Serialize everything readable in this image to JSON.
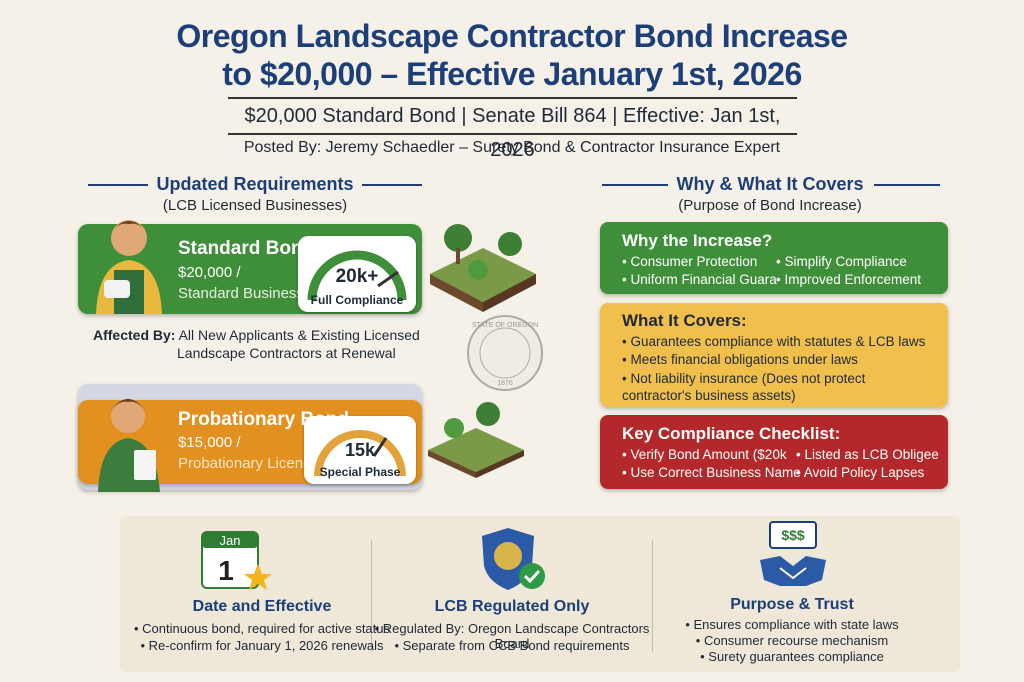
{
  "header": {
    "title_line1": "Oregon Landscape Contractor Bond Increase",
    "title_line2": "to $20,000 – Effective January 1st, 2026",
    "subtitle": "$20,000 Standard Bond | Senate Bill 864 | Effective: Jan 1st, 2026",
    "posted_by": "Posted By: Jeremy Schaedler – Surety Bond & Contractor Insurance Expert"
  },
  "left": {
    "heading": "Updated Requirements",
    "subheading": "(LCB Licensed Businesses)",
    "standard": {
      "title": "Standard Bond",
      "amount": "$20,000 /",
      "desc": "Standard Business",
      "gauge_value": "20k+",
      "gauge_label": "Full Compliance"
    },
    "affected": {
      "label": "Affected By:",
      "line1": "All New Applicants & Existing Licensed",
      "line2": "Landscape Contractors at Renewal"
    },
    "probationary": {
      "title": "Probationary Bond",
      "amount": "$15,000 /",
      "desc": "Probationary License",
      "gauge_value": "15k",
      "gauge_label": "Special Phase"
    },
    "seal": {
      "top": "STATE OF OREGON",
      "year": "1876"
    }
  },
  "right": {
    "heading": "Why & What It Covers",
    "subheading": "(Purpose of Bond Increase)",
    "why": {
      "title": "Why the Increase?",
      "items": [
        "• Consumer Protection",
        "• Simplify Compliance",
        "• Uniform Financial Guara",
        "• Improved Enforcement"
      ]
    },
    "covers": {
      "title": "What It Covers:",
      "items": [
        "• Guarantees compliance with statutes & LCB laws",
        "• Meets financial obligations under laws",
        "• Not liability insurance (Does not protect contractor's business assets)"
      ]
    },
    "checklist": {
      "title": "Key Compliance Checklist:",
      "items": [
        "• Verify Bond Amount ($20k",
        "• Listed as LCB Obligee",
        "• Use Correct Business Name",
        "• Avoid Policy Lapses"
      ]
    }
  },
  "bottom": {
    "date": {
      "icon_month": "Jan",
      "icon_day": "1",
      "title": "Date and Effective",
      "items": [
        "• Continuous bond, required for active status",
        "• Re-confirm for January 1, 2026 renewals"
      ]
    },
    "lcb": {
      "title": "LCB Regulated Only",
      "items": [
        "• Regulated By: Oregon Landscape Contractors Board",
        "• Separate from CCB Bond requirements"
      ]
    },
    "purpose": {
      "icon_text": "$$$",
      "title": "Purpose & Trust",
      "items": [
        "• Ensures compliance with state laws",
        "• Consumer recourse mechanism",
        "• Surety guarantees compliance"
      ]
    }
  }
}
